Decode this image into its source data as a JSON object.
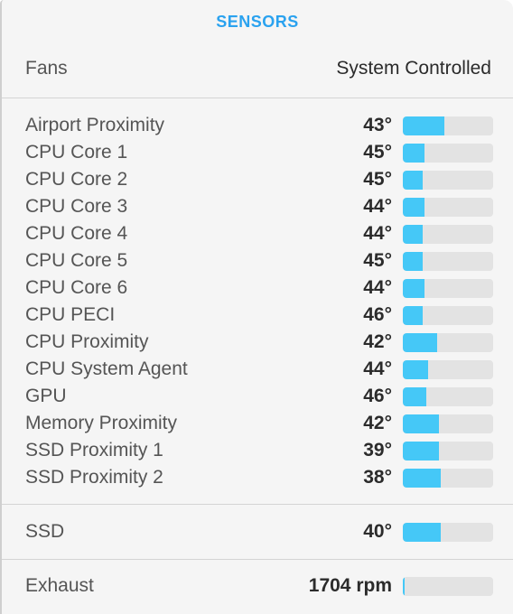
{
  "header": {
    "title": "SENSORS"
  },
  "fans": {
    "label": "Fans",
    "value": "System Controlled"
  },
  "sensors": [
    {
      "name": "Airport Proximity",
      "value": "43°",
      "level": 0.46
    },
    {
      "name": "CPU Core 1",
      "value": "45°",
      "level": 0.24
    },
    {
      "name": "CPU Core 2",
      "value": "45°",
      "level": 0.22
    },
    {
      "name": "CPU Core 3",
      "value": "44°",
      "level": 0.24
    },
    {
      "name": "CPU Core 4",
      "value": "44°",
      "level": 0.22
    },
    {
      "name": "CPU Core 5",
      "value": "45°",
      "level": 0.22
    },
    {
      "name": "CPU Core 6",
      "value": "44°",
      "level": 0.24
    },
    {
      "name": "CPU PECI",
      "value": "46°",
      "level": 0.22
    },
    {
      "name": "CPU Proximity",
      "value": "42°",
      "level": 0.38
    },
    {
      "name": "CPU System Agent",
      "value": "44°",
      "level": 0.28
    },
    {
      "name": "GPU",
      "value": "46°",
      "level": 0.26
    },
    {
      "name": "Memory Proximity",
      "value": "42°",
      "level": 0.4
    },
    {
      "name": "SSD Proximity 1",
      "value": "39°",
      "level": 0.4
    },
    {
      "name": "SSD Proximity 2",
      "value": "38°",
      "level": 0.42
    }
  ],
  "ssd": {
    "name": "SSD",
    "value": "40°",
    "level": 0.42
  },
  "exhaust": {
    "name": "Exhaust",
    "value": "1704 rpm",
    "level": 0.02
  },
  "colors": {
    "accent": "#2aa2ef",
    "bar_fill": "#45c8f7",
    "bar_track": "#e3e3e3"
  }
}
